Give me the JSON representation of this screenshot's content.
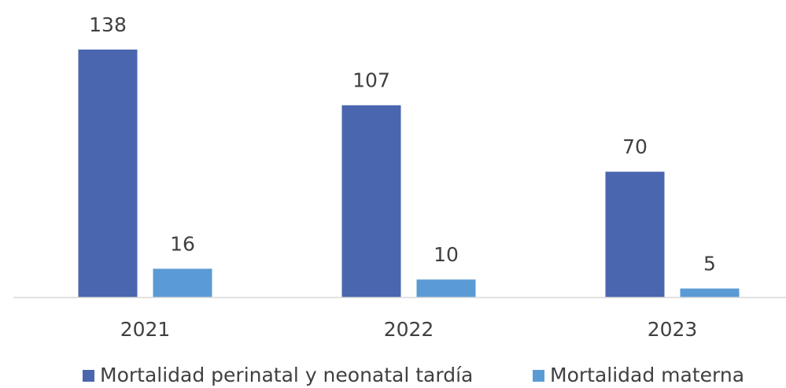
{
  "chart_data": {
    "type": "bar",
    "categories": [
      "2021",
      "2022",
      "2023"
    ],
    "series": [
      {
        "name": "Mortalidad perinatal y neonatal tardía",
        "color": "#4a66ae",
        "values": [
          138,
          107,
          70
        ]
      },
      {
        "name": "Mortalidad materna",
        "color": "#5b9bd5",
        "values": [
          16,
          10,
          5
        ]
      }
    ],
    "ylim": [
      0,
      140
    ],
    "grid": false,
    "legend": "bottom"
  }
}
